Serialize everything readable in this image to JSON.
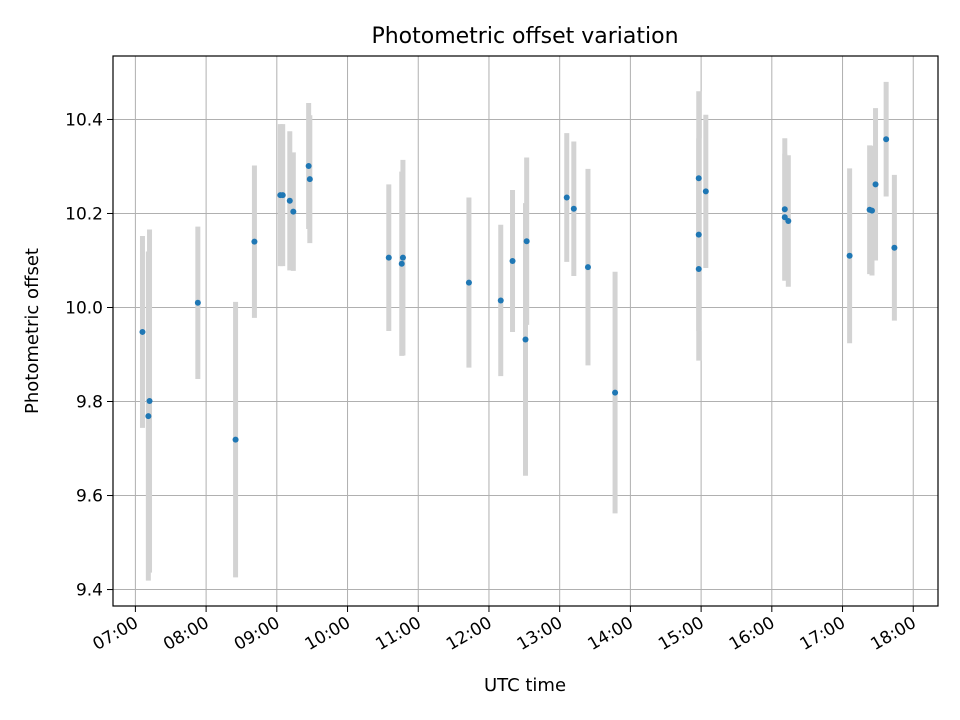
{
  "chart_data": {
    "type": "scatter",
    "title": "Photometric offset variation",
    "xlabel": "UTC time",
    "ylabel": "Photometric offset",
    "x_tick_labels": [
      "07:00",
      "08:00",
      "09:00",
      "10:00",
      "11:00",
      "12:00",
      "13:00",
      "14:00",
      "15:00",
      "16:00",
      "17:00",
      "18:00"
    ],
    "y_tick_labels": [
      "9.4",
      "9.6",
      "9.8",
      "10.0",
      "10.2",
      "10.4"
    ],
    "y_ticks": [
      9.4,
      9.6,
      9.8,
      10.0,
      10.2,
      10.4
    ],
    "xlim": [
      "06:41",
      "18:21"
    ],
    "ylim": [
      9.365,
      10.535
    ],
    "grid": true,
    "point_color": "#1f77b4",
    "errorbar_color": "#d3d3d3",
    "points": [
      {
        "time": "07:06",
        "y": 9.948,
        "err": 0.204
      },
      {
        "time": "07:12",
        "y": 9.801,
        "err": 0.365
      },
      {
        "time": "07:11",
        "y": 9.769,
        "err": 0.35
      },
      {
        "time": "07:53",
        "y": 10.01,
        "err": 0.162
      },
      {
        "time": "08:25",
        "y": 9.719,
        "err": 0.293
      },
      {
        "time": "08:41",
        "y": 10.14,
        "err": 0.162
      },
      {
        "time": "09:03",
        "y": 10.239,
        "err": 0.151
      },
      {
        "time": "09:05",
        "y": 10.239,
        "err": 0.151
      },
      {
        "time": "09:11",
        "y": 10.227,
        "err": 0.148
      },
      {
        "time": "09:14",
        "y": 10.204,
        "err": 0.126
      },
      {
        "time": "09:27",
        "y": 10.301,
        "err": 0.134
      },
      {
        "time": "09:28",
        "y": 10.273,
        "err": 0.136
      },
      {
        "time": "10:35",
        "y": 10.106,
        "err": 0.156
      },
      {
        "time": "10:47",
        "y": 10.106,
        "err": 0.208
      },
      {
        "time": "10:46",
        "y": 10.093,
        "err": 0.196
      },
      {
        "time": "11:43",
        "y": 10.053,
        "err": 0.181
      },
      {
        "time": "12:10",
        "y": 10.015,
        "err": 0.161
      },
      {
        "time": "12:20",
        "y": 10.099,
        "err": 0.151
      },
      {
        "time": "12:31",
        "y": 9.932,
        "err": 0.29
      },
      {
        "time": "12:32",
        "y": 10.141,
        "err": 0.178
      },
      {
        "time": "13:06",
        "y": 10.234,
        "err": 0.137
      },
      {
        "time": "13:12",
        "y": 10.21,
        "err": 0.143
      },
      {
        "time": "13:24",
        "y": 10.086,
        "err": 0.209
      },
      {
        "time": "13:47",
        "y": 9.819,
        "err": 0.257
      },
      {
        "time": "14:58",
        "y": 10.275,
        "err": 0.185
      },
      {
        "time": "14:58",
        "y": 10.155,
        "err": 0.205
      },
      {
        "time": "14:58",
        "y": 10.082,
        "err": 0.195
      },
      {
        "time": "15:04",
        "y": 10.247,
        "err": 0.163
      },
      {
        "time": "16:11",
        "y": 10.209,
        "err": 0.151
      },
      {
        "time": "16:11",
        "y": 10.192,
        "err": 0.135
      },
      {
        "time": "16:14",
        "y": 10.184,
        "err": 0.14
      },
      {
        "time": "17:06",
        "y": 10.11,
        "err": 0.186
      },
      {
        "time": "17:23",
        "y": 10.208,
        "err": 0.137
      },
      {
        "time": "17:25",
        "y": 10.206,
        "err": 0.138
      },
      {
        "time": "17:28",
        "y": 10.262,
        "err": 0.162
      },
      {
        "time": "17:37",
        "y": 10.358,
        "err": 0.122
      },
      {
        "time": "17:44",
        "y": 10.127,
        "err": 0.155
      }
    ]
  }
}
